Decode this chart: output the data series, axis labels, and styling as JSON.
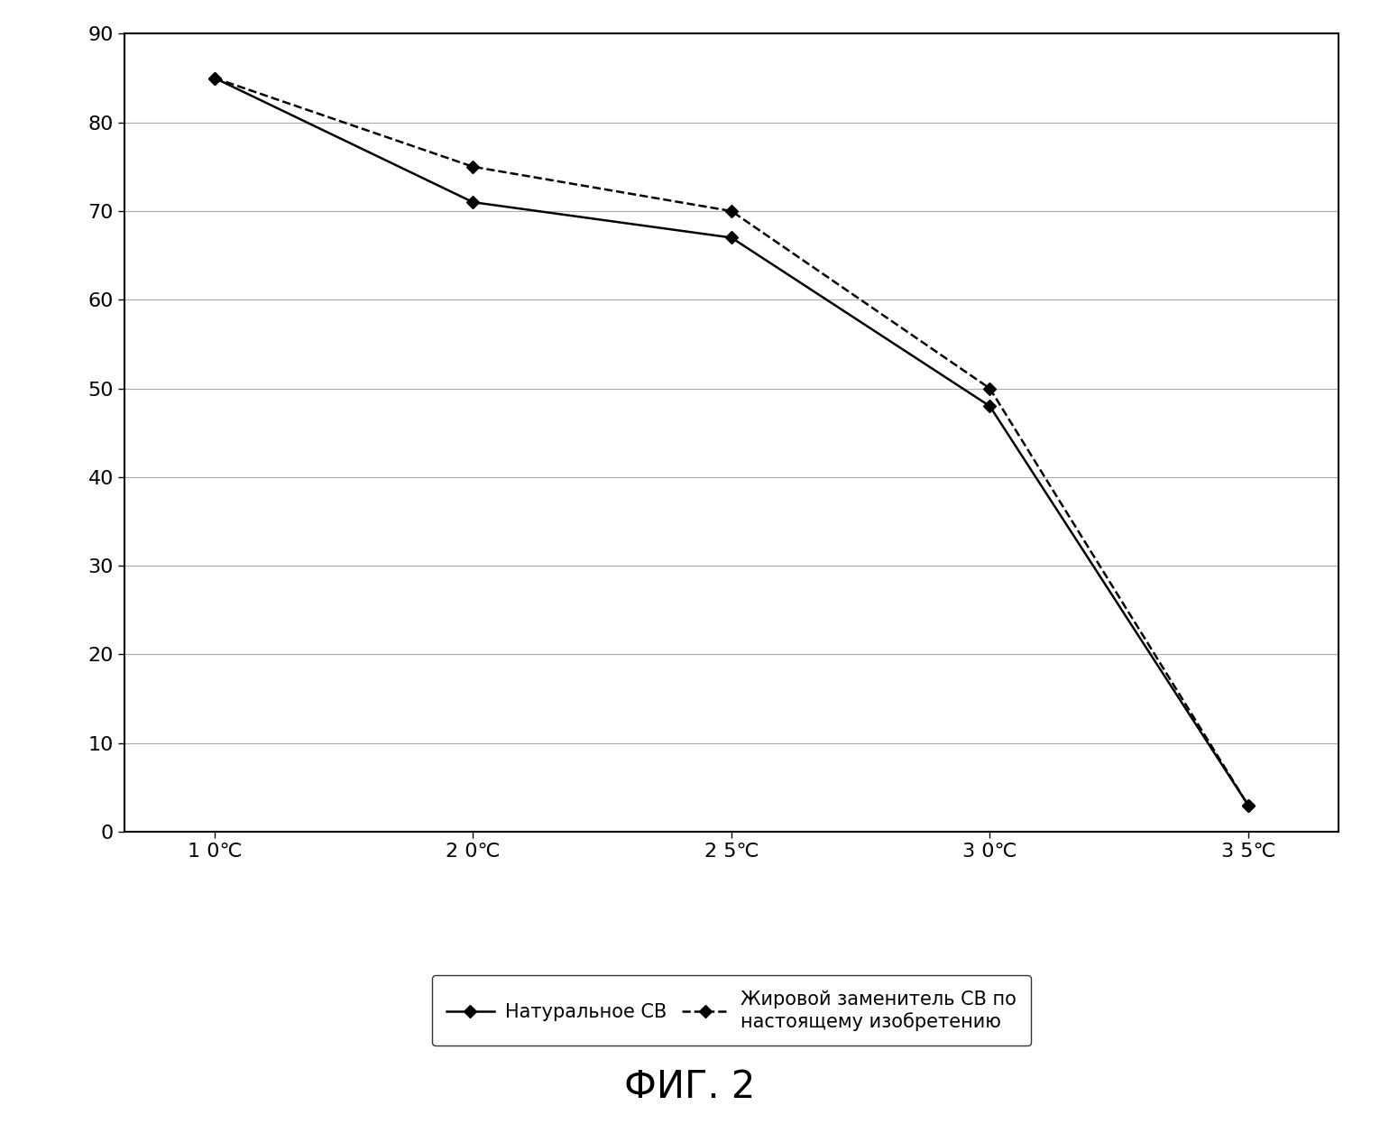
{
  "x_labels": [
    "1 0℃",
    "2 0℃",
    "2 5℃",
    "3 0℃",
    "3 5℃"
  ],
  "x_values": [
    0,
    1,
    2,
    3,
    4
  ],
  "series1_name": "Натуральное СВ",
  "series1_y": [
    85,
    71,
    67,
    48,
    3
  ],
  "series1_color": "#000000",
  "series1_linestyle": "solid",
  "series2_name": "Жировой заменитель СВ по\nнастоящему изобретению",
  "series2_y": [
    85,
    75,
    70,
    50,
    3
  ],
  "series2_color": "#000000",
  "series2_linestyle": "dashed",
  "ylim": [
    0,
    90
  ],
  "xlim": [
    -0.35,
    4.35
  ],
  "ytick_step": 10,
  "figure_title": "ФИГ. 2",
  "title_fontsize": 30,
  "background_color": "#ffffff",
  "legend_fontsize": 15,
  "axis_fontsize": 16,
  "marker": "D",
  "marker_size": 7,
  "linewidth": 1.8,
  "grid_color": "#aaaaaa",
  "grid_linewidth": 0.8
}
